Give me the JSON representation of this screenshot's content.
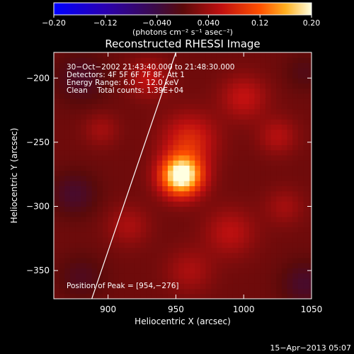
{
  "chart_data": {
    "type": "heatmap",
    "title": "Reconstructed RHESSI Image",
    "xlabel": "Heliocentric X (arcsec)",
    "ylabel": "Heliocentric Y (arcsec)",
    "xlim": [
      860,
      1050
    ],
    "ylim": [
      -372,
      -180
    ],
    "xticks": [
      900,
      950,
      1000,
      1050
    ],
    "xtick_labels": [
      "900",
      "950",
      "1000",
      "1050"
    ],
    "yticks": [
      -200,
      -250,
      -300,
      -350
    ],
    "ytick_labels": [
      "−200",
      "−250",
      "−300",
      "−350"
    ],
    "colorbar": {
      "range": [
        -0.2,
        0.2
      ],
      "ticks": [
        -0.2,
        -0.12,
        -0.04,
        0.04,
        0.12,
        0.2
      ],
      "tick_labels": [
        "−0.20",
        "−0.12",
        "−0.040",
        "0.040",
        "0.12",
        "0.20"
      ],
      "unit_label": "(photons cm⁻² s⁻¹ asec⁻²)"
    },
    "info_lines": [
      "30−Oct−2002 21:43:40.000 to 21:48:30.000",
      "Detectors: 4F 5F 6F 7F 8F, Att 1",
      "Energy Range: 6.0 − 12.0 keV",
      "Clean    Total counts: 1.39E+04"
    ],
    "peak_label": "Position of Peak = [954,−276]",
    "peak": [
      954,
      -276
    ],
    "footer_date": "15−Apr−2013 05:07",
    "limb_line": [
      [
        888,
        -372
      ],
      [
        950,
        -180
      ]
    ],
    "sources": [
      {
        "x": 954,
        "y": -276,
        "amp": 0.21,
        "sigma": 11
      },
      {
        "x": 960,
        "y": -248,
        "amp": 0.07,
        "sigma": 14
      },
      {
        "x": 930,
        "y": -200,
        "amp": 0.05,
        "sigma": 10
      },
      {
        "x": 1000,
        "y": -215,
        "amp": 0.05,
        "sigma": 12
      },
      {
        "x": 1025,
        "y": -245,
        "amp": 0.04,
        "sigma": 10
      },
      {
        "x": 895,
        "y": -240,
        "amp": 0.03,
        "sigma": 9
      },
      {
        "x": 990,
        "y": -320,
        "amp": 0.045,
        "sigma": 13
      },
      {
        "x": 915,
        "y": -315,
        "amp": 0.035,
        "sigma": 11
      },
      {
        "x": 1030,
        "y": -300,
        "amp": 0.03,
        "sigma": 10
      },
      {
        "x": 960,
        "y": -350,
        "amp": 0.035,
        "sigma": 12
      },
      {
        "x": 880,
        "y": -200,
        "amp": -0.03,
        "sigma": 14
      },
      {
        "x": 875,
        "y": -290,
        "amp": -0.035,
        "sigma": 12
      },
      {
        "x": 1045,
        "y": -360,
        "amp": -0.035,
        "sigma": 12
      },
      {
        "x": 1045,
        "y": -195,
        "amp": -0.02,
        "sigma": 10
      },
      {
        "x": 880,
        "y": -355,
        "amp": -0.025,
        "sigma": 12
      }
    ]
  }
}
